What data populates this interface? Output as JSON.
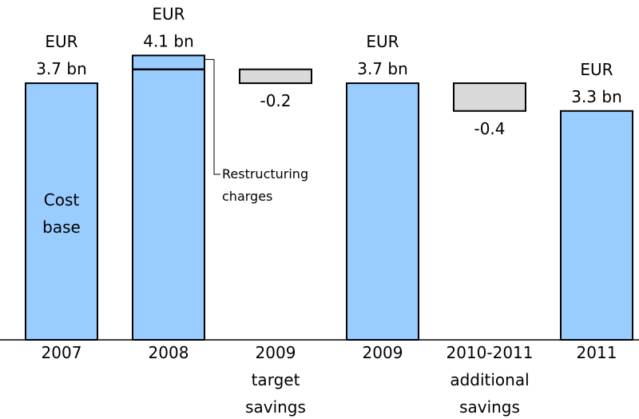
{
  "chart_data": {
    "type": "waterfall",
    "categories": [
      "2007",
      "2008",
      "2009 target savings",
      "2009",
      "2010-2011 additional savings",
      "2011"
    ],
    "values": [
      3.7,
      4.1,
      -0.2,
      3.7,
      -0.4,
      3.3
    ],
    "value_labels": [
      "EUR 3.7 bn",
      "EUR 4.1 bn",
      "-0.2",
      "EUR 3.7 bn",
      "-0.4",
      "EUR 3.3 bn"
    ],
    "measure": [
      "total",
      "total",
      "relative",
      "total",
      "relative",
      "total"
    ],
    "restructuring_charges": 0.2,
    "restructuring_label": "Restructuring charges",
    "bar_label": "Cost base",
    "color": "#99ccff",
    "relative_color": "#d9d9d9",
    "ylim": [
      0,
      4.9
    ]
  }
}
